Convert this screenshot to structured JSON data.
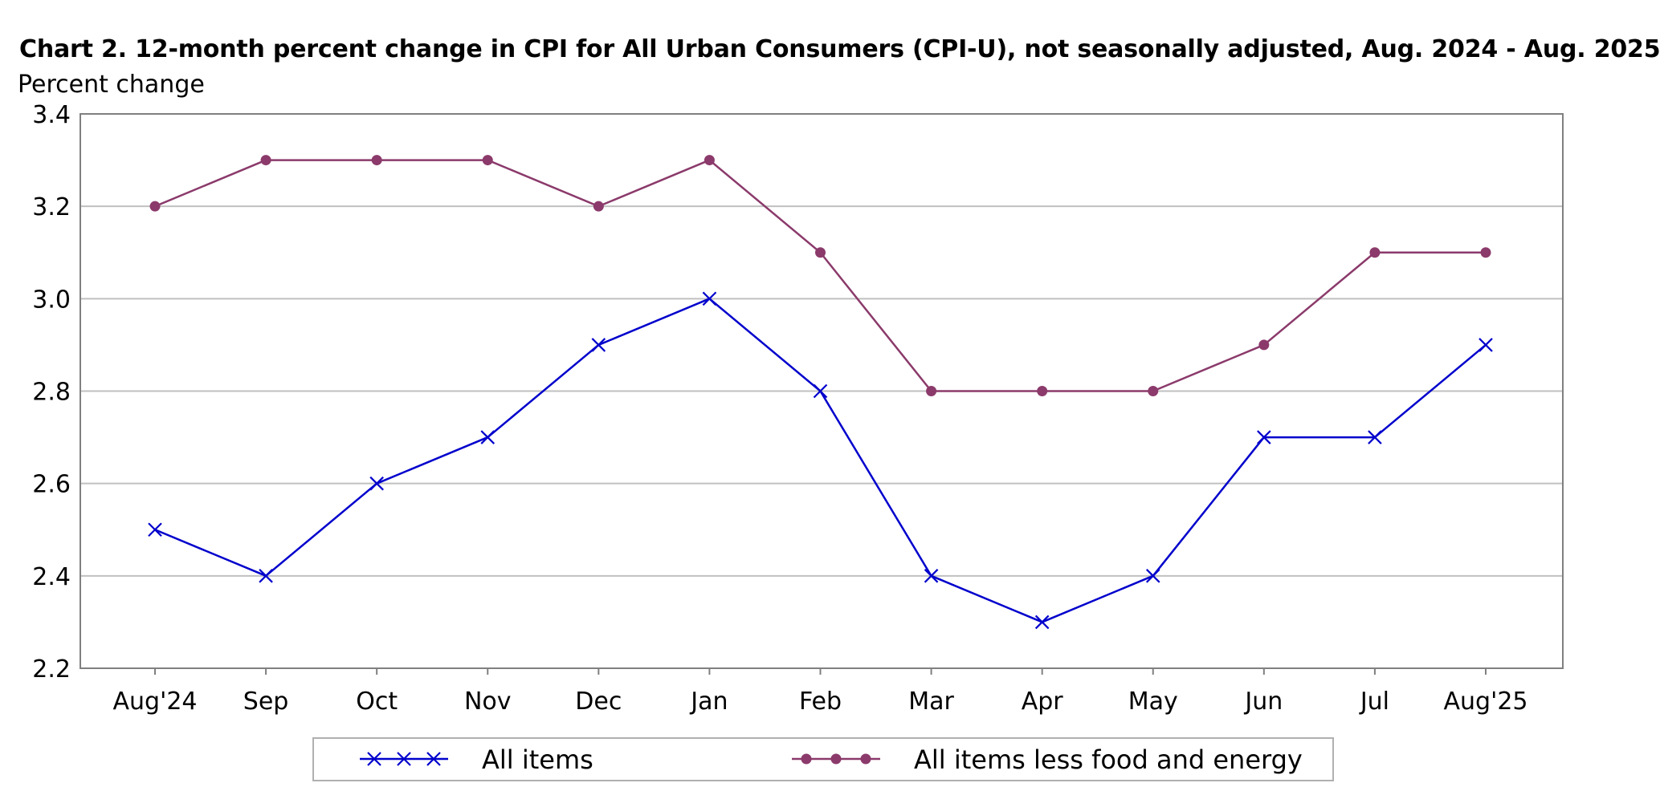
{
  "chart_data": {
    "type": "line",
    "title": "Chart 2. 12-month percent change in CPI for All Urban Consumers (CPI-U), not seasonally adjusted, Aug. 2024 - Aug. 2025",
    "ylabel": "Percent change",
    "xlabel": "",
    "categories": [
      "Aug'24",
      "Sep",
      "Oct",
      "Nov",
      "Dec",
      "Jan",
      "Feb",
      "Mar",
      "Apr",
      "May",
      "Jun",
      "Jul",
      "Aug'25"
    ],
    "ylim": [
      2.2,
      3.4
    ],
    "yticks": [
      2.2,
      2.4,
      2.6,
      2.8,
      3.0,
      3.2,
      3.4
    ],
    "ytick_labels": [
      "2.2",
      "2.4",
      "2.6",
      "2.8",
      "3.0",
      "3.2",
      "3.4"
    ],
    "grid": true,
    "legend_position": "bottom",
    "series": [
      {
        "name": "All items",
        "color": "#0000cc",
        "marker": "x",
        "values": [
          2.5,
          2.4,
          2.6,
          2.7,
          2.9,
          3.0,
          2.8,
          2.4,
          2.3,
          2.4,
          2.7,
          2.7,
          2.9
        ]
      },
      {
        "name": "All items less food and energy",
        "color": "#8b3a6b",
        "marker": "circle",
        "values": [
          3.2,
          3.3,
          3.3,
          3.3,
          3.2,
          3.3,
          3.1,
          2.8,
          2.8,
          2.8,
          2.9,
          3.1,
          3.1
        ]
      }
    ]
  }
}
